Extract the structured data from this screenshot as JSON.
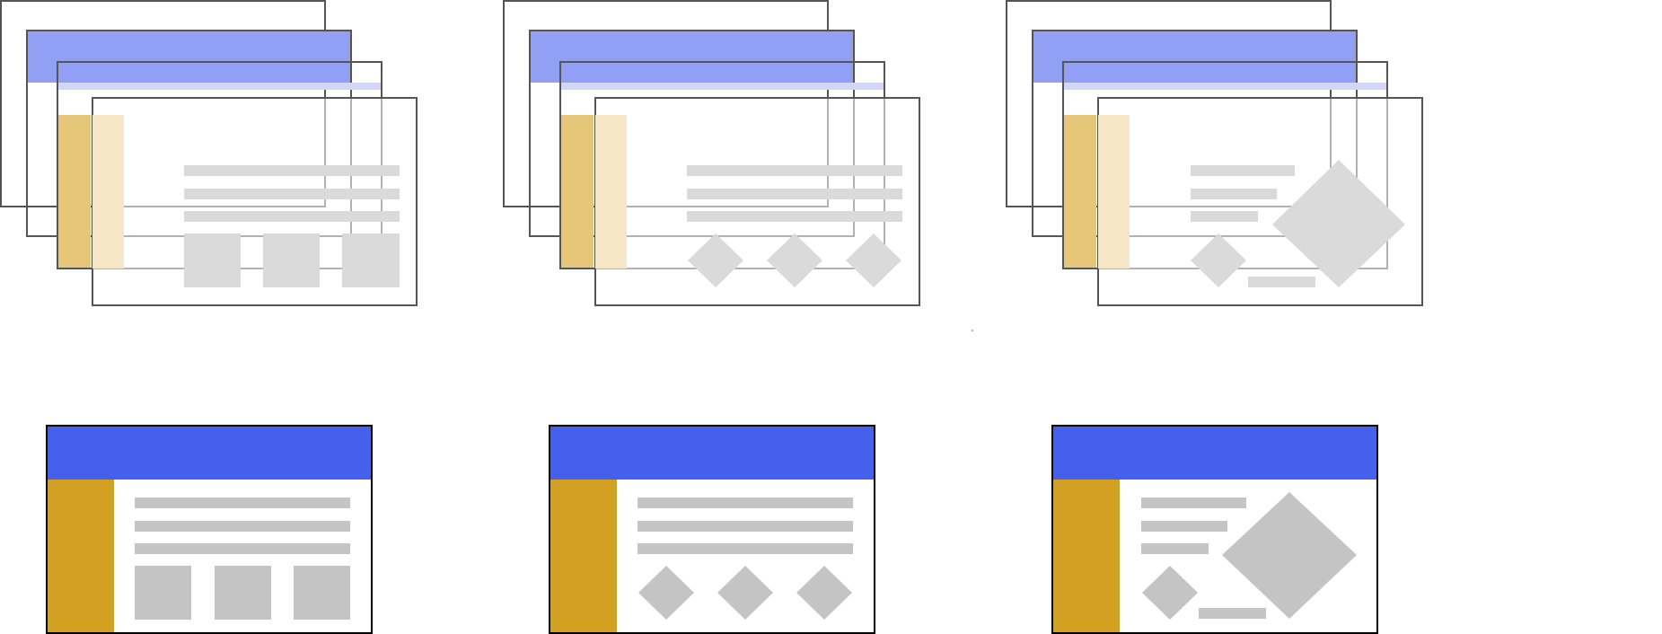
{
  "colors": {
    "header_blue": "#4660EE",
    "header_blue_faded": "#919FF5",
    "header_blue_pale": "#D2D7FA",
    "sidebar_gold": "#D3A021",
    "sidebar_gold_faded": "#E6C679",
    "sidebar_gold_pale": "#F5E7C6",
    "placeholder_gray": "#C4C4C4",
    "placeholder_gray_faded": "#DADADA",
    "frame_black": "#000000",
    "frame_gray": "#555555",
    "background": "#FFFFFF"
  },
  "layout_variants": [
    {
      "name": "cards",
      "content": "three-lines-three-squares"
    },
    {
      "name": "diamonds",
      "content": "three-lines-three-diamonds"
    },
    {
      "name": "feature",
      "content": "short-lines-small-diamond-caption-large-diamond"
    }
  ],
  "stacks": {
    "description_layers": [
      "back-frame",
      "header-layer",
      "content-layer",
      "front-frame"
    ]
  }
}
